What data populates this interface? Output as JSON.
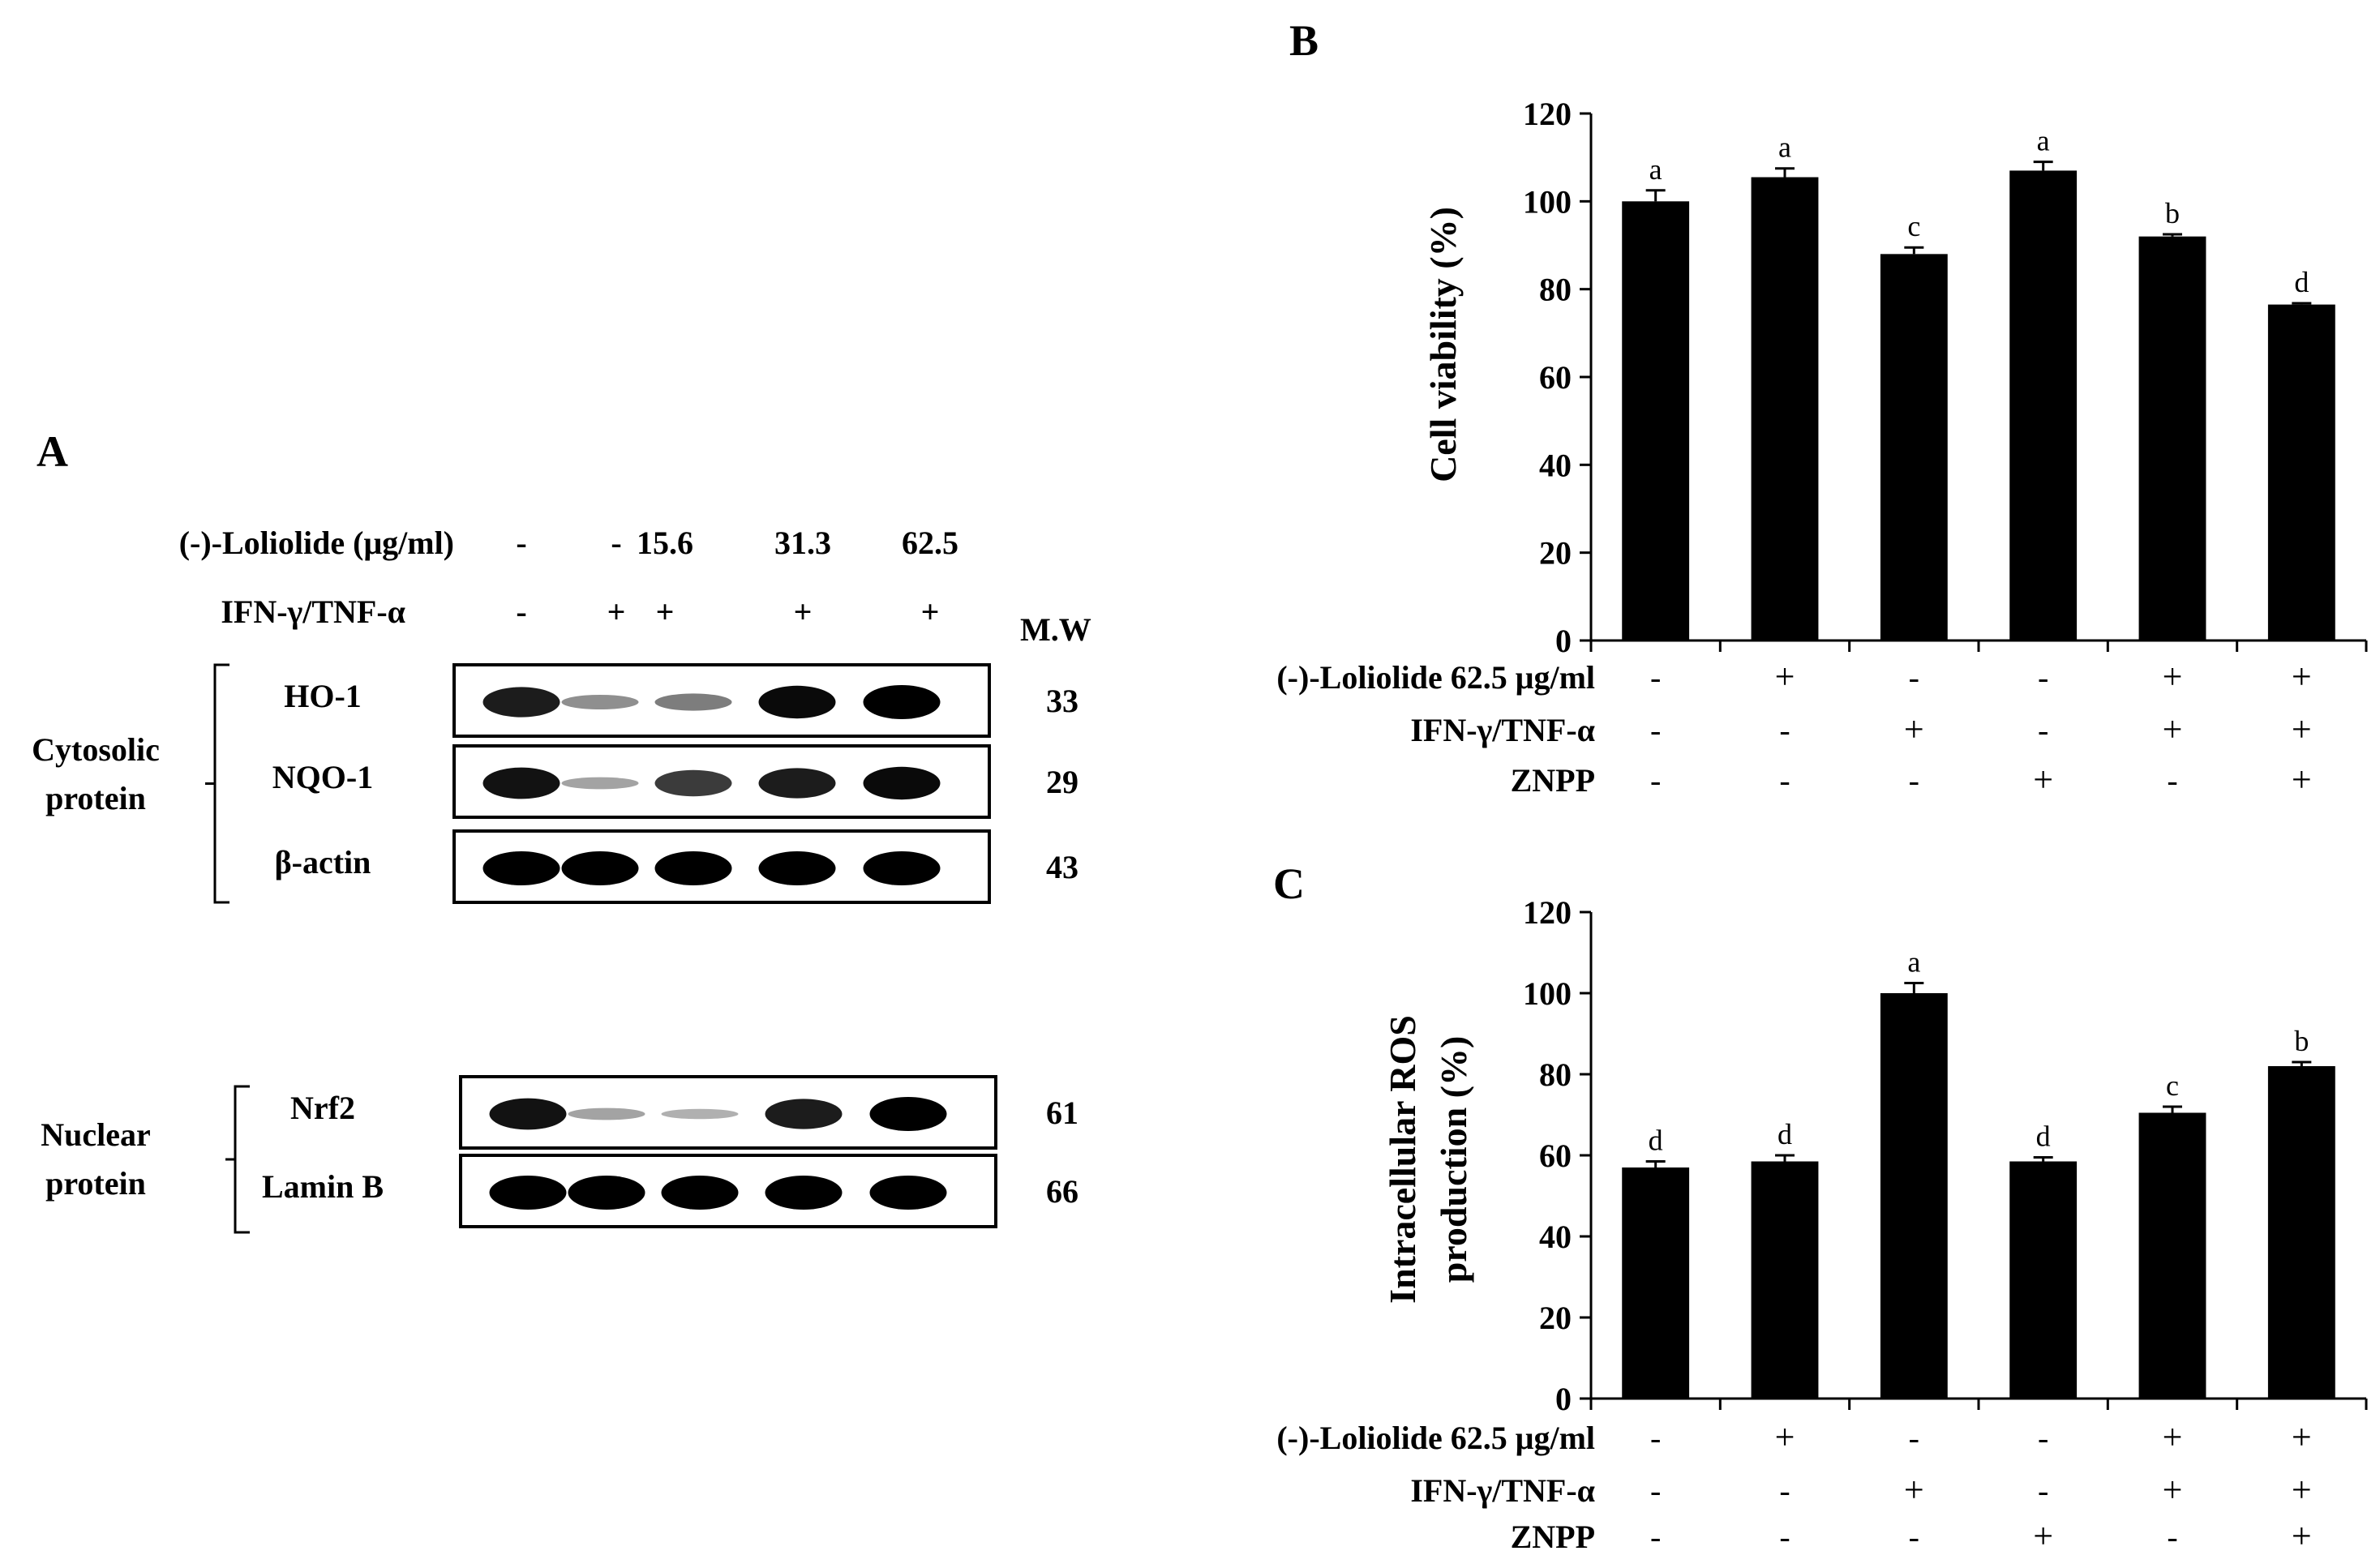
{
  "panel_letters": {
    "a": "A",
    "b": "B",
    "c": "C"
  },
  "western_blot": {
    "treatment_rows": [
      {
        "label": "(-)-Loliolide (μg/ml)",
        "values": [
          "-",
          "-",
          "15.6",
          "31.3",
          "62.5"
        ]
      },
      {
        "label": "IFN-γ/TNF-α",
        "values": [
          "-",
          "+",
          "+",
          "+",
          "+"
        ]
      }
    ],
    "mw_header": "M.W",
    "groups": [
      {
        "label_lines": [
          "Cytosolic",
          "protein"
        ],
        "blots": [
          {
            "name": "HO-1",
            "mw": "33",
            "intensities": [
              0.85,
              0.25,
              0.35,
              0.95,
              1.0
            ]
          },
          {
            "name": "NQO-1",
            "mw": "29",
            "intensities": [
              0.9,
              0.15,
              0.7,
              0.85,
              0.95
            ]
          },
          {
            "name": "β-actin",
            "mw": "43",
            "intensities": [
              1.0,
              1.0,
              1.0,
              1.0,
              1.0
            ]
          }
        ]
      },
      {
        "label_lines": [
          "Nuclear",
          "protein"
        ],
        "blots": [
          {
            "name": "Nrf2",
            "mw": "61",
            "intensities": [
              0.9,
              0.15,
              0.08,
              0.85,
              1.0
            ]
          },
          {
            "name": "Lamin B",
            "mw": "66",
            "intensities": [
              1.0,
              1.0,
              1.0,
              1.0,
              1.0
            ]
          }
        ]
      }
    ]
  },
  "chart_data": [
    {
      "panel": "B",
      "type": "bar",
      "ylabel": "Cell viability (%)",
      "ylim": [
        0,
        120
      ],
      "yticks": [
        0,
        20,
        40,
        60,
        80,
        100,
        120
      ],
      "values": [
        100,
        105.5,
        88,
        107,
        92,
        76.5
      ],
      "errors": [
        2.5,
        2,
        1.5,
        2,
        0.5,
        0.3
      ],
      "significance": [
        "a",
        "a",
        "c",
        "a",
        "b",
        "d"
      ],
      "condition_rows": [
        {
          "label": "(-)-Loliolide 62.5 μg/ml",
          "values": [
            "-",
            "+",
            "-",
            "-",
            "+",
            "+"
          ]
        },
        {
          "label": "IFN-γ/TNF-α",
          "values": [
            "-",
            "-",
            "+",
            "-",
            "+",
            "+"
          ]
        },
        {
          "label": "ZNPP",
          "values": [
            "-",
            "-",
            "-",
            "+",
            "-",
            "+"
          ]
        }
      ],
      "bar_color": "#000000",
      "grid": false
    },
    {
      "panel": "C",
      "type": "bar",
      "ylabel_lines": [
        "Intracellular ROS",
        "production (%)"
      ],
      "ylim": [
        0,
        120
      ],
      "yticks": [
        0,
        20,
        40,
        60,
        80,
        100,
        120
      ],
      "values": [
        57,
        58.5,
        100,
        58.5,
        70.5,
        82
      ],
      "errors": [
        1.5,
        1.5,
        2.5,
        1,
        1.5,
        1
      ],
      "significance": [
        "d",
        "d",
        "a",
        "d",
        "c",
        "b"
      ],
      "condition_rows": [
        {
          "label": "(-)-Loliolide 62.5 μg/ml",
          "values": [
            "-",
            "+",
            "-",
            "-",
            "+",
            "+"
          ]
        },
        {
          "label": "IFN-γ/TNF-α",
          "values": [
            "-",
            "-",
            "+",
            "-",
            "+",
            "+"
          ]
        },
        {
          "label": "ZNPP",
          "values": [
            "-",
            "-",
            "-",
            "+",
            "-",
            "+"
          ]
        }
      ],
      "bar_color": "#000000",
      "grid": false
    }
  ]
}
